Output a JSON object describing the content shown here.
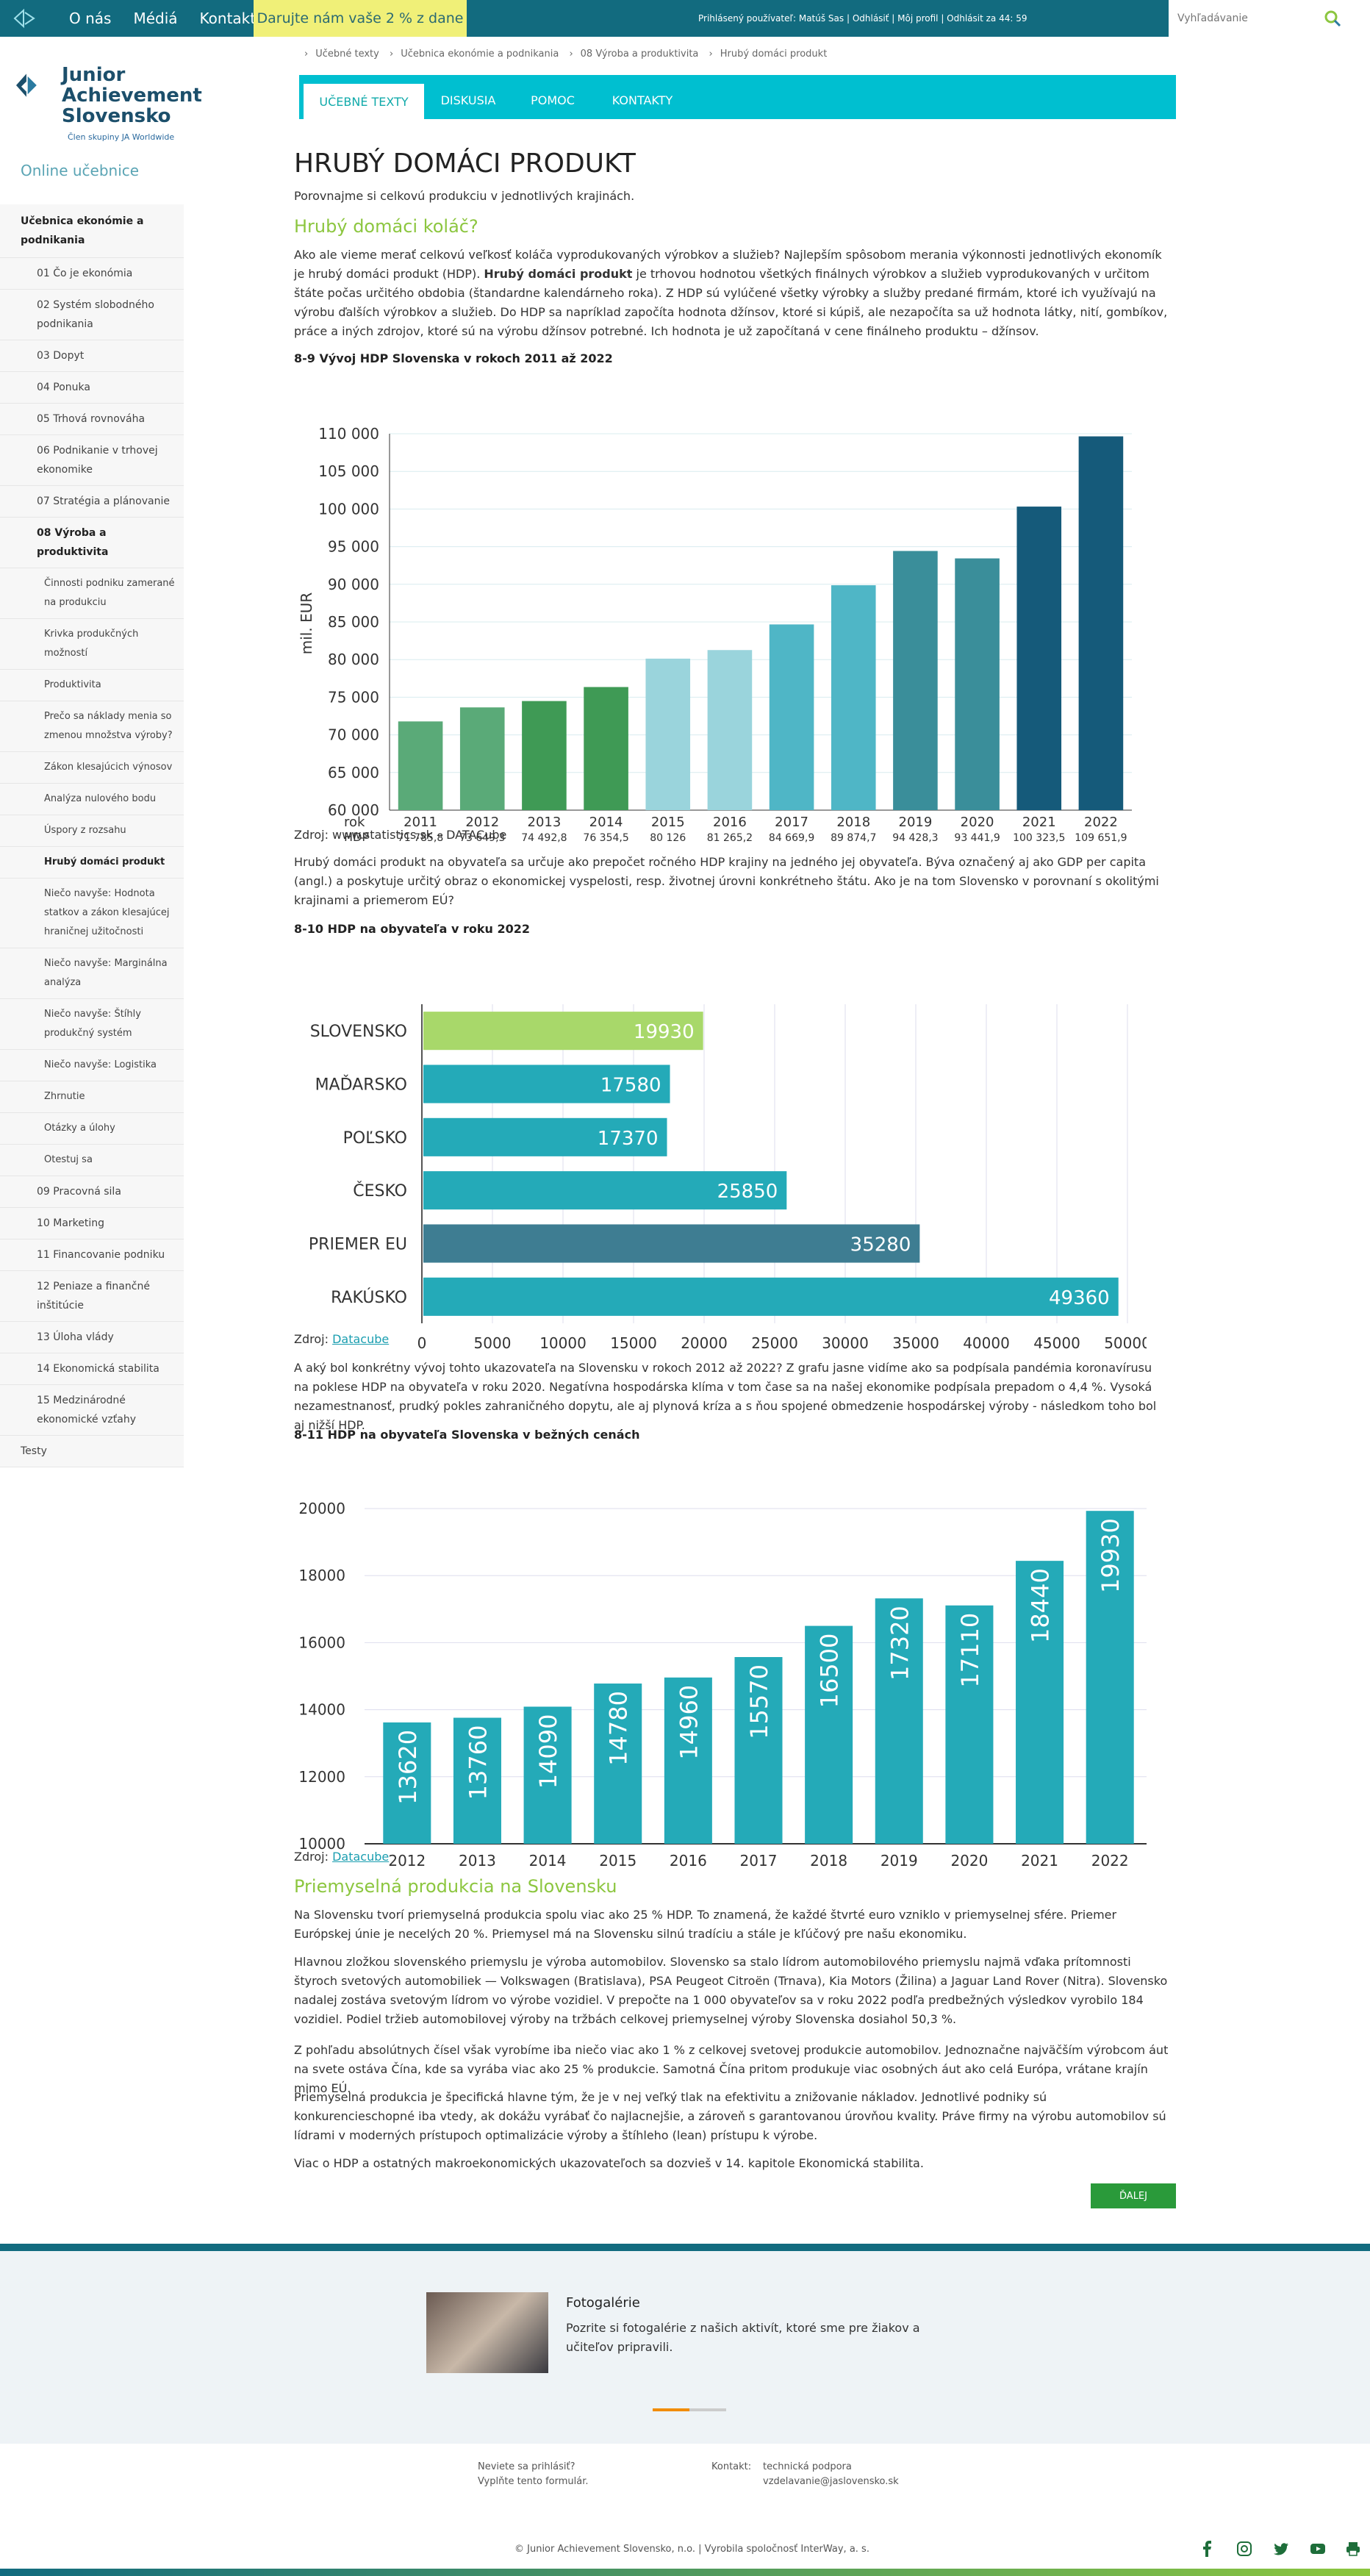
{
  "topbar": {
    "nav": [
      "O nás",
      "Médiá",
      "Kontakt"
    ],
    "donate": "Darujte nám vaše 2 % z dane",
    "userline": "Prihlásený používateľ: Matúš Sas | Odhlásiť | Môj profil | Odhlásit za 44: 59",
    "search_placeholder": "Vyhľadávanie"
  },
  "sidebar": {
    "brand": "Junior Achievement Slovensko",
    "brand_line1": "Junior",
    "brand_line2": "Achievement",
    "brand_line3": "Slovensko",
    "brand_sub": "Člen skupiny JA Worldwide",
    "online": "Online učebnice",
    "items": [
      {
        "label": "Učebnica ekonómie a podnikania",
        "level": "top"
      },
      {
        "label": "01 Čo je ekonómia",
        "level": "1"
      },
      {
        "label": "02 Systém slobodného podnikania",
        "level": "1"
      },
      {
        "label": "03 Dopyt",
        "level": "1"
      },
      {
        "label": "04 Ponuka",
        "level": "1"
      },
      {
        "label": "05 Trhová rovnováha",
        "level": "1"
      },
      {
        "label": "06 Podnikanie v trhovej ekonomike",
        "level": "1"
      },
      {
        "label": "07 Stratégia a plánovanie",
        "level": "1"
      },
      {
        "label": "08 Výroba a produktivita",
        "level": "1b"
      },
      {
        "label": "Činnosti podniku zamerané na produkciu",
        "level": "2"
      },
      {
        "label": "Krivka produkčných možností",
        "level": "2"
      },
      {
        "label": "Produktivita",
        "level": "2"
      },
      {
        "label": "Prečo sa náklady menia so zmenou množstva výroby?",
        "level": "2"
      },
      {
        "label": "Zákon klesajúcich výnosov",
        "level": "2"
      },
      {
        "label": "Analýza nulového bodu",
        "level": "2"
      },
      {
        "label": "Úspory z rozsahu",
        "level": "2"
      },
      {
        "label": "Hrubý domáci produkt",
        "level": "2b"
      },
      {
        "label": "Niečo navyše: Hodnota statkov a zákon klesajúcej hraničnej užitočnosti",
        "level": "2"
      },
      {
        "label": "Niečo navyše: Marginálna analýza",
        "level": "2"
      },
      {
        "label": "Niečo navyše: Štíhly produkčný systém",
        "level": "2"
      },
      {
        "label": "Niečo navyše: Logistika",
        "level": "2"
      },
      {
        "label": "Zhrnutie",
        "level": "2"
      },
      {
        "label": "Otázky a úlohy",
        "level": "2"
      },
      {
        "label": "Otestuj sa",
        "level": "2"
      },
      {
        "label": "09 Pracovná sila",
        "level": "1"
      },
      {
        "label": "10 Marketing",
        "level": "1"
      },
      {
        "label": "11 Financovanie podniku",
        "level": "1"
      },
      {
        "label": "12 Peniaze a finančné inštitúcie",
        "level": "1"
      },
      {
        "label": "13 Úloha vlády",
        "level": "1"
      },
      {
        "label": "14 Ekonomická stabilita",
        "level": "1"
      },
      {
        "label": "15 Medzinárodné ekonomické vzťahy",
        "level": "1"
      },
      {
        "label": "Testy",
        "level": "top0"
      }
    ]
  },
  "breadcrumb": [
    "Učebné texty",
    "Učebnica ekonómie a podnikania",
    "08 Výroba a produktivita",
    "Hrubý domáci produkt"
  ],
  "tabs": [
    "UČEBNÉ TEXTY",
    "DISKUSIA",
    "POMOC",
    "KONTAKTY"
  ],
  "content": {
    "title": "HRUBÝ DOMÁCI PRODUKT",
    "intro": "Porovnajme si celkovú produkciu v jednotlivých krajinách.",
    "h_kolac": "Hrubý domáci koláč?",
    "p1a": "Ako ale vieme merať celkovú veľkosť koláča vyprodukovaných výrobkov a služieb? Najlepším spôsobom merania výkonnosti jednotlivých ekonomík je hrubý domáci produkt (HDP).",
    "p1b": "Hrubý domáci produkt",
    "p1c": "je trhovou hodnotou všetkých finálnych výrobkov a služieb vyprodukovaných v určitom štáte počas určitého obdobia (štandardne kalendárneho roka). Z HDP sú vylúčené všetky výrobky a služby predané firmám, ktoré ich využívajú na výrobu ďalších výrobkov a služieb. Do HDP sa napríklad započíta hodnota džínsov, ktoré si kúpiš, ale nezapočíta sa už hodnota látky, nití, gombíkov, práce a iných zdrojov, ktoré sú na výrobu džínsov potrebné. Ich hodnota je už započítaná v cene finálneho produktu – džínsov.",
    "cap1": "8-9 Vývoj HDP Slovenska v rokoch 2011 až 2022",
    "src1": "Zdroj: www.statistics.sk – DATACube",
    "p2": "Hrubý domáci produkt na obyvateľa sa určuje ako prepočet ročného HDP krajiny na jedného jej obyvateľa. Býva označený aj ako GDP per capita (angl.) a poskytuje určitý obraz o ekonomickej vyspelosti, resp. životnej úrovni konkrétneho štátu. Ako je na tom Slovensko v porovnaní s okolitými krajinami a priemerom EÚ?",
    "cap2": "8-10 HDP na obyvateľa v roku 2022",
    "src_prefix": "Zdroj:",
    "src_link": "Datacube",
    "p3": "A aký bol konkrétny vývoj tohto ukazovateľa na Slovensku v rokoch 2012 až 2022? Z grafu jasne vidíme ako sa podpísala pandémia koronavírusu na poklese HDP na obyvateľa v roku 2020. Negatívna hospodárska klíma v tom čase sa na našej ekonomike podpísala prepadom o 4,4 %. Vysoká nezamestnanosť, prudký pokles zahraničného dopytu, ale aj plynová kríza a s ňou spojené obmedzenie hospodárskej výroby - následkom toho bol aj nižší HDP.",
    "cap3": "8-11 HDP na obyvateľa Slovenska v bežných cenách",
    "h_prod": "Priemyselná produkcia na Slovensku",
    "p4": "Na Slovensku tvorí priemyselná produkcia spolu viac ako 25 % HDP. To znamená, že každé štvrté euro vzniklo v priemyselnej sfére. Priemer Európskej únie je necelých 20 %. Priemysel má na Slovensku silnú tradíciu a stále je kľúčový pre našu ekonomiku.",
    "p5": "Hlavnou zložkou slovenského priemyslu je výroba automobilov. Slovensko sa stalo lídrom automobilového priemyslu najmä vďaka prítomnosti štyroch svetových automobiliek — Volkswagen (Bratislava), PSA Peugeot Citroën (Trnava), Kia Motors (Žilina) a Jaguar Land Rover (Nitra). Slovensko nadalej zostáva svetovým lídrom vo výrobe vozidiel. V prepočte na 1 000 obyvateľov sa v roku 2022 podľa predbežných výsledkov vyrobilo 184 vozidiel. Podiel tržieb automobilovej výroby na tržbách celkovej priemyselnej výroby Slovenska dosiahol 50,3 %.",
    "p6": "Z pohľadu absolútnych čísel však vyrobíme iba niečo viac ako 1 % z celkovej svetovej produkcie automobilov. Jednoznačne najväčším výrobcom áut na svete ostáva Čína, kde sa vyrába viac ako 25 % produkcie. Samotná Čína pritom produkuje viac osobných áut ako celá Európa, vrátane krajín mimo EÚ.",
    "p7": "Priemyselná produkcia je špecifická hlavne tým, že je v nej veľký tlak na efektivitu a znižovanie nákladov. Jednotlivé podniky sú konkurencieschopné iba vtedy, ak dokážu vyrábať čo najlacnejšie, a zároveň s garantovanou úrovňou kvality. Práve firmy na výrobu automobilov sú lídrami v moderných prístupoch optimalizácie výroby a štíhleho (lean) prístupu k výrobe.",
    "p8": "Viac o HDP a ostatných makroekonomických ukazovateľoch sa dozvieš v 14. kapitole Ekonomická stabilita.",
    "next": "ĎALEJ"
  },
  "chart_data": [
    {
      "type": "bar",
      "ylabel": "mil. EUR",
      "xlabel": "rok HDP",
      "x_title_line1": "rok",
      "x_title_line2": "HDP",
      "ylim": [
        60000,
        110000
      ],
      "yticks": [
        "60 000",
        "65 000",
        "70 000",
        "75 000",
        "80 000",
        "85 000",
        "90 000",
        "95 000",
        "100 000",
        "105 000",
        "110 000"
      ],
      "categories": [
        "2011",
        "2012",
        "2013",
        "2014",
        "2015",
        "2016",
        "2017",
        "2018",
        "2019",
        "2020",
        "2021",
        "2022"
      ],
      "labels": [
        "71 785,8",
        "73 649,3",
        "74 492,8",
        "76 354,5",
        "80 126",
        "81 265,2",
        "84 669,9",
        "89 874,7",
        "94 428,3",
        "93 441,9",
        "100 323,5",
        "109 651,9"
      ],
      "values": [
        71785.8,
        73649.3,
        74492.8,
        76354.5,
        80126,
        81265.2,
        84669.9,
        89874.7,
        94428.3,
        93441.9,
        100323.5,
        109651.9
      ],
      "colors": [
        "#5aaa78",
        "#5aaa78",
        "#3f9a55",
        "#3f9a55",
        "#9ad4dc",
        "#9ad4dc",
        "#4fb6c6",
        "#4fb6c6",
        "#3a8e9a",
        "#3a8e9a",
        "#155a7a",
        "#155a7a"
      ],
      "grid": true
    },
    {
      "type": "bar",
      "orientation": "horizontal",
      "categories": [
        "SLOVENSKO",
        "MAĎARSKO",
        "POĽSKO",
        "ČESKO",
        "PRIEMER EU",
        "RAKÚSKO"
      ],
      "values": [
        19930,
        17580,
        17370,
        25850,
        35280,
        49360
      ],
      "value_labels": [
        "19930",
        "17580",
        "17370",
        "25850",
        "35280",
        "49360"
      ],
      "xlim": [
        0,
        50000
      ],
      "xticks": [
        "0",
        "5000",
        "10000",
        "15000",
        "20000",
        "25000",
        "30000",
        "35000",
        "40000",
        "45000",
        "50000"
      ],
      "colors": [
        "#a8d86a",
        "#24aab8",
        "#24aab8",
        "#24aab8",
        "#3e7d92",
        "#24aab8"
      ],
      "grid": true
    },
    {
      "type": "bar",
      "categories": [
        "2012",
        "2013",
        "2014",
        "2015",
        "2016",
        "2017",
        "2018",
        "2019",
        "2020",
        "2021",
        "2022"
      ],
      "values": [
        13620,
        13760,
        14090,
        14780,
        14960,
        15570,
        16500,
        17320,
        17110,
        18440,
        19930
      ],
      "value_labels": [
        "13620",
        "13760",
        "14090",
        "14780",
        "14960",
        "15570",
        "16500",
        "17320",
        "17110",
        "18440",
        "19930"
      ],
      "ylim": [
        10000,
        20000
      ],
      "yticks": [
        "10000",
        "12000",
        "14000",
        "16000",
        "18000",
        "20000"
      ],
      "color": "#24aab8",
      "grid": true
    }
  ],
  "gallery": {
    "title": "Fotogalérie",
    "text": "Pozrite si fotogalérie z našich aktivít, ktoré sme pre žiakov a učiteľov pripravili."
  },
  "footer": {
    "login_q": "Neviete sa prihlásiť?",
    "login_a": "Vyplňte tento formulár.",
    "contact_label": "Kontakt:",
    "contact_1": "technická podpora",
    "contact_2": "vzdelavanie@jaslovensko.sk",
    "copyright": "© Junior Achievement Slovensko, n.o. | Vyrobila spoločnosť InterWay, a. s.",
    "social": [
      "facebook-icon",
      "instagram-icon",
      "twitter-icon",
      "youtube-icon",
      "print-icon"
    ]
  }
}
